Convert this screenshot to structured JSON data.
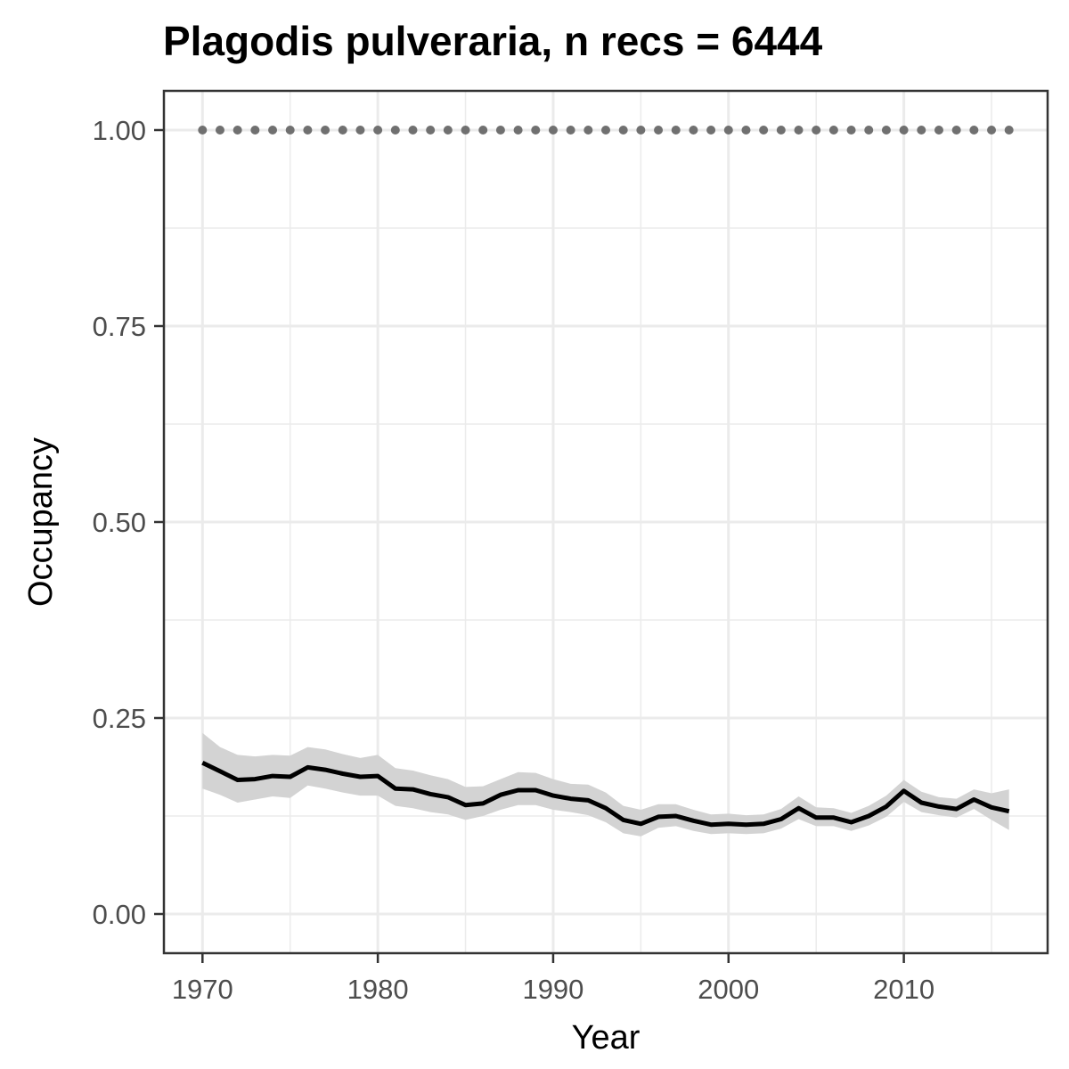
{
  "chart_data": {
    "type": "line",
    "title": "Plagodis pulveraria, n recs = 6444",
    "xlabel": "Year",
    "ylabel": "Occupancy",
    "xlim": [
      1967.8,
      2018.2
    ],
    "ylim": [
      -0.05,
      1.05
    ],
    "x_ticks": [
      1970,
      1980,
      1990,
      2000,
      2010
    ],
    "x_tick_labels": [
      "1970",
      "1980",
      "1990",
      "2000",
      "2010"
    ],
    "y_ticks": [
      0,
      0.25,
      0.5,
      0.75,
      1.0
    ],
    "y_tick_labels": [
      "0.00",
      "0.25",
      "0.50",
      "0.75",
      "1.00"
    ],
    "grid": true,
    "legend": "none",
    "colors": {
      "mean_line": "#000000",
      "ci_band": "#d3d3d3",
      "reference_points": "#707070",
      "grid": "#ebebeb",
      "border": "#333333"
    },
    "x": [
      1970,
      1971,
      1972,
      1973,
      1974,
      1975,
      1976,
      1977,
      1978,
      1979,
      1980,
      1981,
      1982,
      1983,
      1984,
      1985,
      1986,
      1987,
      1988,
      1989,
      1990,
      1991,
      1992,
      1993,
      1994,
      1995,
      1996,
      1997,
      1998,
      1999,
      2000,
      2001,
      2002,
      2003,
      2004,
      2005,
      2006,
      2007,
      2008,
      2009,
      2010,
      2011,
      2012,
      2013,
      2014,
      2015,
      2016
    ],
    "series": [
      {
        "values": [
          0.193,
          0.182,
          0.171,
          0.172,
          0.176,
          0.175,
          0.187,
          0.184,
          0.179,
          0.175,
          0.176,
          0.16,
          0.159,
          0.153,
          0.149,
          0.139,
          0.141,
          0.152,
          0.158,
          0.158,
          0.151,
          0.147,
          0.145,
          0.135,
          0.12,
          0.115,
          0.124,
          0.125,
          0.119,
          0.114,
          0.115,
          0.114,
          0.115,
          0.121,
          0.135,
          0.123,
          0.123,
          0.117,
          0.125,
          0.137,
          0.157,
          0.142,
          0.137,
          0.134,
          0.146,
          0.136,
          0.131
        ],
        "lower": [
          0.16,
          0.152,
          0.142,
          0.146,
          0.15,
          0.148,
          0.164,
          0.16,
          0.155,
          0.151,
          0.151,
          0.138,
          0.135,
          0.13,
          0.127,
          0.12,
          0.125,
          0.133,
          0.139,
          0.139,
          0.133,
          0.13,
          0.126,
          0.117,
          0.103,
          0.099,
          0.11,
          0.112,
          0.106,
          0.102,
          0.103,
          0.102,
          0.103,
          0.109,
          0.121,
          0.112,
          0.112,
          0.106,
          0.113,
          0.124,
          0.143,
          0.13,
          0.126,
          0.123,
          0.134,
          0.12,
          0.107
        ],
        "upper": [
          0.231,
          0.213,
          0.203,
          0.201,
          0.203,
          0.202,
          0.213,
          0.21,
          0.204,
          0.199,
          0.203,
          0.186,
          0.183,
          0.177,
          0.172,
          0.162,
          0.163,
          0.172,
          0.181,
          0.18,
          0.172,
          0.166,
          0.165,
          0.155,
          0.138,
          0.133,
          0.14,
          0.14,
          0.133,
          0.127,
          0.128,
          0.126,
          0.127,
          0.134,
          0.15,
          0.136,
          0.135,
          0.129,
          0.138,
          0.151,
          0.171,
          0.156,
          0.149,
          0.147,
          0.159,
          0.154,
          0.159
        ]
      }
    ],
    "reference_points": {
      "x": [
        1970,
        1971,
        1972,
        1973,
        1974,
        1975,
        1976,
        1977,
        1978,
        1979,
        1980,
        1981,
        1982,
        1983,
        1984,
        1985,
        1986,
        1987,
        1988,
        1989,
        1990,
        1991,
        1992,
        1993,
        1994,
        1995,
        1996,
        1997,
        1998,
        1999,
        2000,
        2001,
        2002,
        2003,
        2004,
        2005,
        2006,
        2007,
        2008,
        2009,
        2010,
        2011,
        2012,
        2013,
        2014,
        2015,
        2016
      ],
      "y": 1.0
    }
  }
}
